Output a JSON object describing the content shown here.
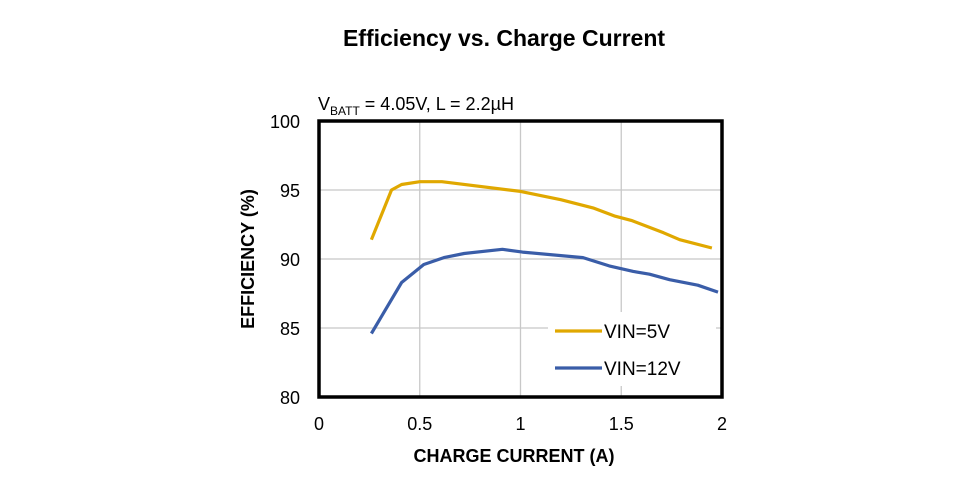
{
  "chart_data": {
    "type": "line",
    "title": "Efficiency vs. Charge Current",
    "subtitle": {
      "prefix": "V",
      "subscript": "BATT",
      "suffix": " = 4.05V, L = 2.2µH"
    },
    "xlabel": "CHARGE CURRENT (A)",
    "ylabel": "EFFICIENCY (%)",
    "xlim": [
      0,
      2
    ],
    "ylim": [
      80,
      100
    ],
    "xticks": [
      "0",
      "0.5",
      "1",
      "1.5",
      "2"
    ],
    "yticks": [
      "80",
      "85",
      "90",
      "95",
      "100"
    ],
    "grid": true,
    "legend_position": "bottom-right",
    "series": [
      {
        "name": "VIN=5V",
        "color": "#E0A800",
        "x": [
          0.26,
          0.36,
          0.41,
          0.5,
          0.61,
          1.0,
          1.2,
          1.36,
          1.47,
          1.55,
          1.71,
          1.79,
          1.95
        ],
        "y": [
          91.4,
          95.0,
          95.4,
          95.6,
          95.6,
          94.9,
          94.3,
          93.7,
          93.1,
          92.8,
          91.9,
          91.4,
          90.8
        ]
      },
      {
        "name": "VIN=12V",
        "color": "#3A5DA8",
        "x": [
          0.26,
          0.41,
          0.52,
          0.62,
          0.72,
          0.91,
          1.01,
          1.31,
          1.44,
          1.56,
          1.64,
          1.74,
          1.88,
          1.98
        ],
        "y": [
          84.6,
          88.3,
          89.6,
          90.1,
          90.4,
          90.7,
          90.5,
          90.1,
          89.5,
          89.1,
          88.9,
          88.5,
          88.1,
          87.6
        ]
      }
    ]
  }
}
